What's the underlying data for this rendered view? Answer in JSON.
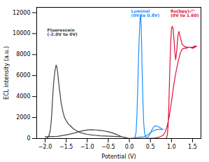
{
  "chart_data": {
    "type": "line",
    "xlabel": "Potential (V)",
    "ylabel": "ECL intensity (a.u.)",
    "xlim": [
      -2.2,
      1.7
    ],
    "ylim": [
      0,
      12500
    ],
    "xticks": [
      {
        "value": -2.0,
        "label": "−2.0"
      },
      {
        "value": -1.5,
        "label": "−1.5"
      },
      {
        "value": -1.0,
        "label": "−1.0"
      },
      {
        "value": -0.5,
        "label": "−0.5"
      },
      {
        "value": 0.0,
        "label": "0.0"
      },
      {
        "value": 0.5,
        "label": "0.5"
      },
      {
        "value": 1.0,
        "label": "1.0"
      },
      {
        "value": 1.5,
        "label": "1.5"
      }
    ],
    "yticks": [
      0,
      2000,
      4000,
      6000,
      8000,
      10000,
      12000
    ],
    "series": [
      {
        "color": "#404040",
        "x": [
          -2.0,
          -1.96,
          -1.92,
          -1.88,
          -1.86,
          -1.84,
          -1.82,
          -1.8,
          -1.78,
          -1.76,
          -1.74,
          -1.72,
          -1.7,
          -1.68,
          -1.66,
          -1.62,
          -1.58,
          -1.54,
          -1.5,
          -1.45,
          -1.4,
          -1.35,
          -1.3,
          -1.25,
          -1.2,
          -1.15,
          -1.1,
          -1.05,
          -1.0,
          -0.9,
          -0.8,
          -0.7,
          -0.6,
          -0.5,
          -0.4,
          -0.3,
          -0.2,
          -0.1,
          0.0,
          -0.1,
          -0.2,
          -0.3,
          -0.4,
          -0.5,
          -0.6,
          -0.7,
          -0.8,
          -0.9,
          -1.0,
          -1.1,
          -1.2,
          -1.3,
          -1.4,
          -1.5,
          -1.6,
          -1.7,
          -1.75,
          -1.8,
          -1.84,
          -1.88,
          -1.92,
          -1.96,
          -2.0
        ],
        "values": [
          0,
          30,
          150,
          700,
          1400,
          2500,
          4000,
          5200,
          6000,
          6600,
          7000,
          6800,
          6200,
          5400,
          4700,
          3400,
          2600,
          2000,
          1700,
          1400,
          1200,
          1000,
          850,
          730,
          630,
          550,
          490,
          440,
          400,
          340,
          300,
          265,
          240,
          220,
          205,
          190,
          178,
          100,
          0,
          80,
          200,
          380,
          530,
          640,
          720,
          780,
          820,
          840,
          810,
          740,
          640,
          530,
          430,
          340,
          270,
          215,
          200,
          195,
          192,
          188,
          185,
          182,
          180
        ]
      },
      {
        "color": "#1E90FF",
        "x": [
          0.0,
          0.05,
          0.1,
          0.13,
          0.16,
          0.18,
          0.2,
          0.22,
          0.24,
          0.25,
          0.26,
          0.27,
          0.28,
          0.29,
          0.3,
          0.32,
          0.34,
          0.36,
          0.38,
          0.4,
          0.44,
          0.48,
          0.52,
          0.56,
          0.6,
          0.64,
          0.68,
          0.72,
          0.76,
          0.8,
          0.76,
          0.72,
          0.68,
          0.64,
          0.6,
          0.56,
          0.52,
          0.48,
          0.44,
          0.4,
          0.36,
          0.32,
          0.28,
          0.24,
          0.2,
          0.16,
          0.12,
          0.08,
          0.04,
          0.0
        ],
        "values": [
          0,
          0,
          0,
          80,
          600,
          2200,
          5000,
          8000,
          10200,
          11200,
          11800,
          11600,
          10800,
          9200,
          7200,
          3800,
          1500,
          600,
          200,
          100,
          120,
          350,
          700,
          1000,
          1200,
          1200,
          1150,
          1050,
          950,
          850,
          870,
          880,
          860,
          840,
          780,
          700,
          600,
          480,
          360,
          260,
          195,
          165,
          145,
          128,
          110,
          90,
          68,
          45,
          20,
          0
        ]
      },
      {
        "color": "#DC143C",
        "x": [
          0.0,
          0.1,
          0.2,
          0.3,
          0.4,
          0.5,
          0.6,
          0.7,
          0.8,
          0.86,
          0.88,
          0.9,
          0.92,
          0.94,
          0.96,
          0.98,
          1.0,
          1.02,
          1.04,
          1.06,
          1.08,
          1.1,
          1.12,
          1.14,
          1.16,
          1.18,
          1.2,
          1.25,
          1.3,
          1.35,
          1.4,
          1.45,
          1.5,
          1.55,
          1.6,
          1.55,
          1.5,
          1.45,
          1.4,
          1.35,
          1.3,
          1.25,
          1.2,
          1.15,
          1.1,
          1.05,
          1.0,
          0.95,
          0.9,
          0.85,
          0.8,
          0.7,
          0.6,
          0.5,
          0.4,
          0.3,
          0.2,
          0.1,
          0.0
        ],
        "values": [
          0,
          0,
          0,
          0,
          0,
          0,
          0,
          0,
          0,
          0,
          50,
          300,
          1200,
          3500,
          6500,
          9000,
          10500,
          10700,
          10400,
          9400,
          8200,
          7500,
          8200,
          9200,
          10000,
          10200,
          9800,
          9000,
          8800,
          8700,
          8700,
          8700,
          8600,
          8700,
          8800,
          8800,
          8700,
          8700,
          8700,
          8600,
          8600,
          8500,
          8000,
          7200,
          6200,
          5000,
          3500,
          2200,
          1200,
          600,
          300,
          120,
          50,
          20,
          8,
          4,
          2,
          1,
          0
        ]
      }
    ],
    "annotations": [
      {
        "text": "Fluorescein\n(-2.0V to 0V)",
        "x": -1.95,
        "y": 10500,
        "color": "#404040"
      },
      {
        "text": "Luminol\n(0V to 0.8V)",
        "x": 0.04,
        "y": 12300,
        "color": "#1E90FF"
      },
      {
        "text": "Ru(bpy)₃²⁺\n(0V to 1.60)",
        "x": 0.98,
        "y": 12300,
        "color": "#DC143C"
      }
    ]
  }
}
